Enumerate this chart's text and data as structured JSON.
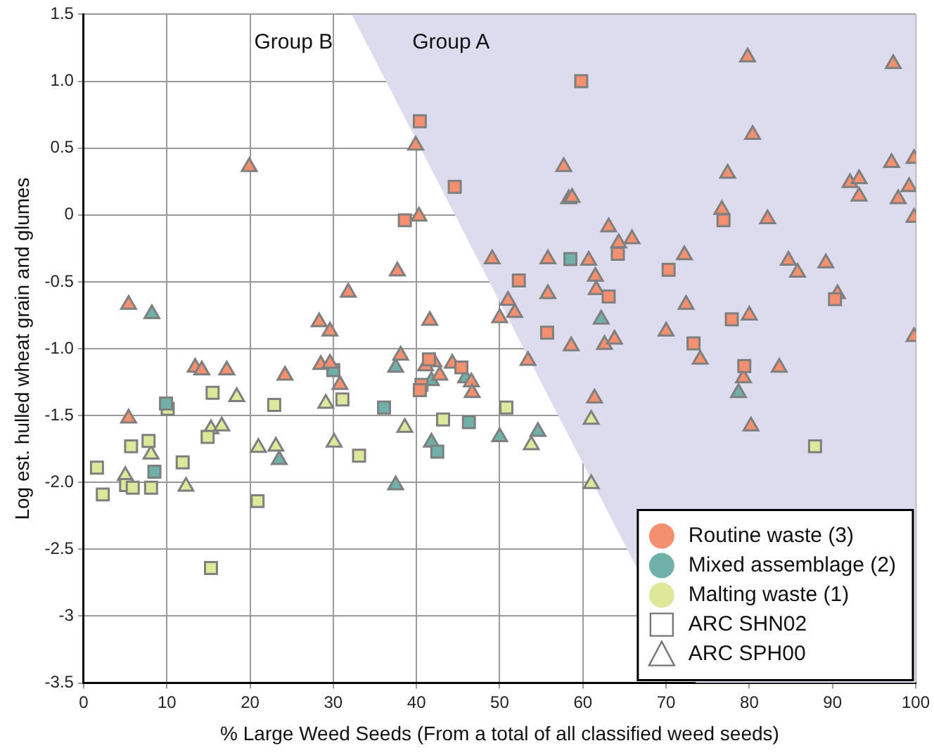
{
  "chart_data": {
    "type": "scatter",
    "xlabel": "% Large Weed Seeds (From a total of all classified weed seeds)",
    "ylabel": "Log est. hulled wheat grain and glumes",
    "xlim": [
      0,
      100
    ],
    "xticks": [
      0,
      10,
      20,
      30,
      40,
      50,
      60,
      70,
      80,
      90,
      100
    ],
    "ylim": [
      -3.5,
      1.5
    ],
    "yticks": [
      1.5,
      {
        "value": 1,
        "label": "1.0"
      },
      0.5,
      0,
      -0.5,
      {
        "value": -1,
        "label": "-1.0"
      },
      -1.5,
      {
        "value": -2,
        "label": "-2.0"
      },
      -2.5,
      -3,
      -3.5
    ],
    "grid": true,
    "legend": "bottom right",
    "annotations": [
      "Group B",
      "Group A"
    ],
    "series": [
      {
        "type": "area",
        "marker": "none",
        "color": "#dcdcee",
        "x": [
          32.2,
          73.6,
          100,
          100
        ],
        "values": [
          1.5,
          -3.5,
          -3.5,
          1.5
        ]
      },
      {
        "marker": "square",
        "color": "#f4906f",
        "x": [
          59.8,
          40.4,
          44.6,
          38.6,
          64.2,
          52.3,
          63.1,
          55.7,
          41.5,
          40.6,
          40.4,
          45.4,
          76.9,
          70.3,
          90.3,
          77.9,
          73.3,
          79.4
        ],
        "values": [
          1.0,
          0.7,
          0.21,
          -0.04,
          -0.29,
          -0.49,
          -0.61,
          -0.88,
          -1.08,
          -1.27,
          -1.31,
          -1.14,
          -0.04,
          -0.41,
          -0.63,
          -0.78,
          -0.96,
          -1.13
        ]
      },
      {
        "marker": "triangle",
        "color": "#f4906f",
        "x": [
          5.4,
          13.4,
          14.2,
          17.2,
          24.2,
          28.3,
          29.6,
          28.5,
          29.6,
          30.8,
          31.8,
          5.4,
          19.9,
          39.9,
          57.7,
          58.7,
          40.3,
          63.1,
          64.3,
          37.7,
          49.1,
          55.8,
          60.7,
          61.5,
          55.8,
          61.6,
          41.6,
          51.0,
          50.0,
          51.8,
          58.6,
          62.6,
          63.8,
          38.1,
          42.1,
          41.1,
          42.8,
          44.3,
          46.6,
          46.7,
          53.4,
          61.4,
          79.8,
          97.3,
          80.4,
          77.4,
          97.1,
          99.8,
          92.1,
          93.2,
          93.2,
          99.2,
          97.9,
          99.8,
          76.7,
          82.2,
          65.9,
          72.2,
          84.7,
          85.8,
          89.2,
          90.6,
          72.4,
          80,
          70,
          74.1,
          79.3,
          83.6,
          99.8,
          80.2
        ],
        "values": [
          -0.67,
          -1.14,
          -1.16,
          -1.16,
          -1.2,
          -0.8,
          -0.87,
          -1.12,
          -1.11,
          -1.27,
          -0.58,
          -1.52,
          0.36,
          0.52,
          0.36,
          0.13,
          -0.01,
          -0.09,
          -0.21,
          -0.42,
          -0.33,
          -0.33,
          -0.34,
          -0.46,
          -0.59,
          -0.56,
          -0.79,
          -0.64,
          -0.77,
          -0.73,
          -0.98,
          -0.97,
          -0.93,
          -1.05,
          -1.1,
          -1.13,
          -1.2,
          -1.11,
          -1.25,
          -1.33,
          -1.09,
          -1.37,
          1.18,
          1.13,
          0.6,
          0.31,
          0.39,
          0.42,
          0.24,
          0.27,
          0.14,
          0.21,
          0.12,
          -0.02,
          0.04,
          -0.03,
          -0.18,
          -0.3,
          -0.34,
          -0.43,
          -0.36,
          -0.59,
          -0.67,
          -0.75,
          -0.87,
          -1.08,
          -1.22,
          -1.14,
          -0.91,
          -1.58
        ]
      },
      {
        "marker": "square",
        "color": "#6fb0a8",
        "x": [
          30,
          9.9,
          8.5,
          58.5,
          36.1,
          46.3,
          42.5
        ],
        "values": [
          -1.16,
          -1.41,
          -1.92,
          -0.33,
          -1.44,
          -1.55,
          -1.77
        ]
      },
      {
        "marker": "triangle",
        "color": "#6fb0a8",
        "x": [
          8.2,
          23.5,
          58.3,
          62.2,
          37.5,
          41.8,
          45.9,
          41.8,
          50.0,
          54.6,
          37.5,
          78.7
        ],
        "values": [
          -0.74,
          -1.83,
          0.12,
          -0.78,
          -1.14,
          -1.24,
          -1.22,
          -1.7,
          -1.66,
          -1.62,
          -2.02,
          -1.33
        ]
      },
      {
        "marker": "square",
        "color": "#dde89a",
        "x": [
          15.5,
          22.9,
          31.1,
          10.1,
          5.7,
          7.8,
          1.6,
          5.1,
          5.9,
          8.1,
          2.3,
          11.9,
          14.9,
          20.9,
          15.3,
          33.1,
          43.2,
          50.8,
          87.9
        ],
        "values": [
          -1.33,
          -1.42,
          -1.38,
          -1.45,
          -1.73,
          -1.69,
          -1.89,
          -2.02,
          -2.04,
          -2.04,
          -2.09,
          -1.85,
          -1.66,
          -2.14,
          -2.64,
          -1.8,
          -1.53,
          -1.44,
          -1.73
        ]
      },
      {
        "marker": "triangle",
        "color": "#dde89a",
        "x": [
          18.4,
          29.1,
          8.1,
          5.0,
          12.3,
          15.3,
          16.6,
          21.0,
          23.1,
          30.1,
          61.0,
          38.6,
          53.8,
          61.0
        ],
        "values": [
          -1.36,
          -1.41,
          -1.79,
          -1.95,
          -2.03,
          -1.6,
          -1.58,
          -1.74,
          -1.73,
          -1.7,
          -1.53,
          -1.59,
          -1.72,
          -2.01
        ]
      },
      {
        "name": "Routine waste (3)",
        "marker": "circle",
        "color": "#f4906f"
      },
      {
        "name": "Mixed assemblage (2)",
        "marker": "circle",
        "color": "#6fb0a8"
      },
      {
        "name": "Malting waste (1)",
        "marker": "circle",
        "color": "#dde89a"
      },
      {
        "name": "ARC SHN02",
        "marker": "square",
        "color": "#ffffff"
      },
      {
        "name": "ARC SPH00",
        "marker": "triangle",
        "color": "#ffffff"
      }
    ]
  }
}
